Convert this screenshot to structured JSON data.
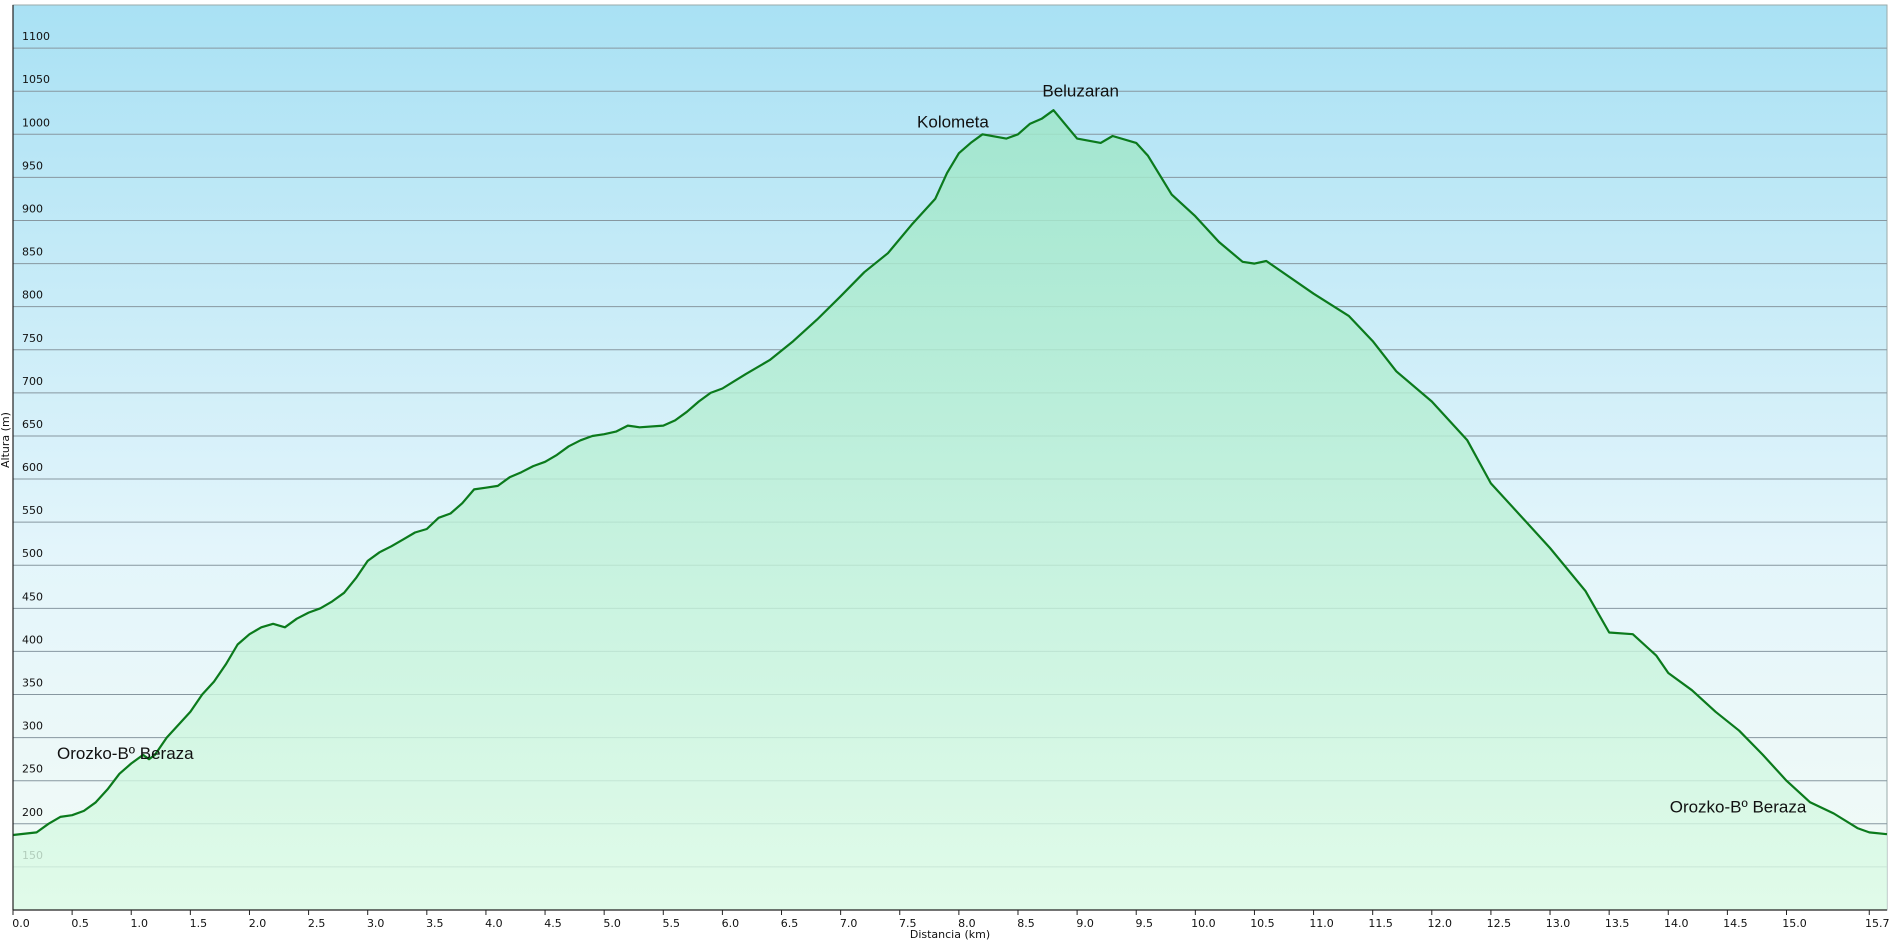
{
  "chart_data": {
    "type": "area",
    "x_label": "Distancia (km)",
    "y_label": "Altura (m)",
    "x": [
      0.0,
      0.2,
      0.3,
      0.4,
      0.5,
      0.6,
      0.7,
      0.8,
      0.9,
      1.0,
      1.1,
      1.15,
      1.2,
      1.3,
      1.4,
      1.5,
      1.6,
      1.7,
      1.8,
      1.9,
      2.0,
      2.1,
      2.2,
      2.3,
      2.4,
      2.5,
      2.6,
      2.7,
      2.8,
      2.9,
      3.0,
      3.1,
      3.2,
      3.3,
      3.4,
      3.5,
      3.6,
      3.7,
      3.8,
      3.9,
      4.0,
      4.1,
      4.2,
      4.3,
      4.4,
      4.5,
      4.6,
      4.7,
      4.8,
      4.9,
      5.0,
      5.1,
      5.2,
      5.3,
      5.5,
      5.6,
      5.7,
      5.8,
      5.9,
      6.0,
      6.2,
      6.4,
      6.6,
      6.8,
      7.0,
      7.2,
      7.4,
      7.6,
      7.8,
      7.9,
      8.0,
      8.1,
      8.2,
      8.4,
      8.5,
      8.6,
      8.7,
      8.8,
      9.0,
      9.2,
      9.3,
      9.5,
      9.6,
      9.8,
      10.0,
      10.2,
      10.4,
      10.5,
      10.6,
      11.0,
      11.3,
      11.5,
      11.7,
      12.0,
      12.2,
      12.3,
      12.5,
      12.7,
      13.0,
      13.3,
      13.5,
      13.7,
      13.9,
      14.0,
      14.2,
      14.4,
      14.6,
      14.8,
      15.0,
      15.2,
      15.4,
      15.6,
      15.7,
      15.85
    ],
    "series": [
      {
        "name": "Altura",
        "color": "#0b7a1c",
        "values": [
          187,
          190,
          200,
          208,
          210,
          215,
          225,
          240,
          258,
          270,
          280,
          275,
          280,
          300,
          315,
          330,
          350,
          365,
          385,
          408,
          420,
          428,
          432,
          428,
          438,
          445,
          450,
          458,
          468,
          485,
          505,
          515,
          522,
          530,
          538,
          542,
          555,
          560,
          572,
          588,
          590,
          592,
          602,
          608,
          615,
          620,
          628,
          638,
          645,
          650,
          652,
          655,
          662,
          660,
          662,
          668,
          678,
          690,
          700,
          705,
          722,
          738,
          760,
          785,
          812,
          840,
          862,
          895,
          925,
          955,
          978,
          990,
          1000,
          995,
          1000,
          1012,
          1018,
          1028,
          995,
          990,
          998,
          990,
          975,
          930,
          905,
          875,
          852,
          850,
          853,
          815,
          789,
          760,
          725,
          690,
          660,
          645,
          595,
          565,
          520,
          470,
          422,
          420,
          395,
          375,
          355,
          330,
          308,
          280,
          250,
          225,
          212,
          195,
          190,
          188
        ]
      }
    ],
    "annotations": [
      {
        "text": "Orozko-Bº Beraza",
        "x": 0.95,
        "y": 282
      },
      {
        "text": "Kolometa",
        "x": 7.95,
        "y": 1015
      },
      {
        "text": "Beluzaran",
        "x": 9.03,
        "y": 1051
      },
      {
        "text": "Orozko-Bº Beraza",
        "x": 14.59,
        "y": 220
      }
    ],
    "xlim": [
      0,
      15.85
    ],
    "ylim": [
      100,
      1150
    ],
    "xticks": [
      {
        "value": 0,
        "label": "0.0"
      },
      0.5,
      {
        "value": 1,
        "label": "1.0"
      },
      1.5,
      {
        "value": 2,
        "label": "2.0"
      },
      2.5,
      {
        "value": 3,
        "label": "3.0"
      },
      3.5,
      {
        "value": 4,
        "label": "4.0"
      },
      4.5,
      {
        "value": 5,
        "label": "5.0"
      },
      5.5,
      {
        "value": 6,
        "label": "6.0"
      },
      6.5,
      {
        "value": 7,
        "label": "7.0"
      },
      7.5,
      {
        "value": 8,
        "label": "8.0"
      },
      8.5,
      {
        "value": 9,
        "label": "9.0"
      },
      9.5,
      {
        "value": 10,
        "label": "10.0"
      },
      10.5,
      {
        "value": 11,
        "label": "11.0"
      },
      11.5,
      {
        "value": 12,
        "label": "12.0"
      },
      12.5,
      {
        "value": 13,
        "label": "13.0"
      },
      13.5,
      {
        "value": 14,
        "label": "14.0"
      },
      14.5,
      {
        "value": 15,
        "label": "15.0"
      },
      15.7
    ],
    "yticks": [
      150,
      200,
      250,
      300,
      350,
      400,
      450,
      500,
      550,
      600,
      650,
      700,
      750,
      800,
      850,
      900,
      950,
      1000,
      1050,
      1100
    ],
    "grid": true
  }
}
